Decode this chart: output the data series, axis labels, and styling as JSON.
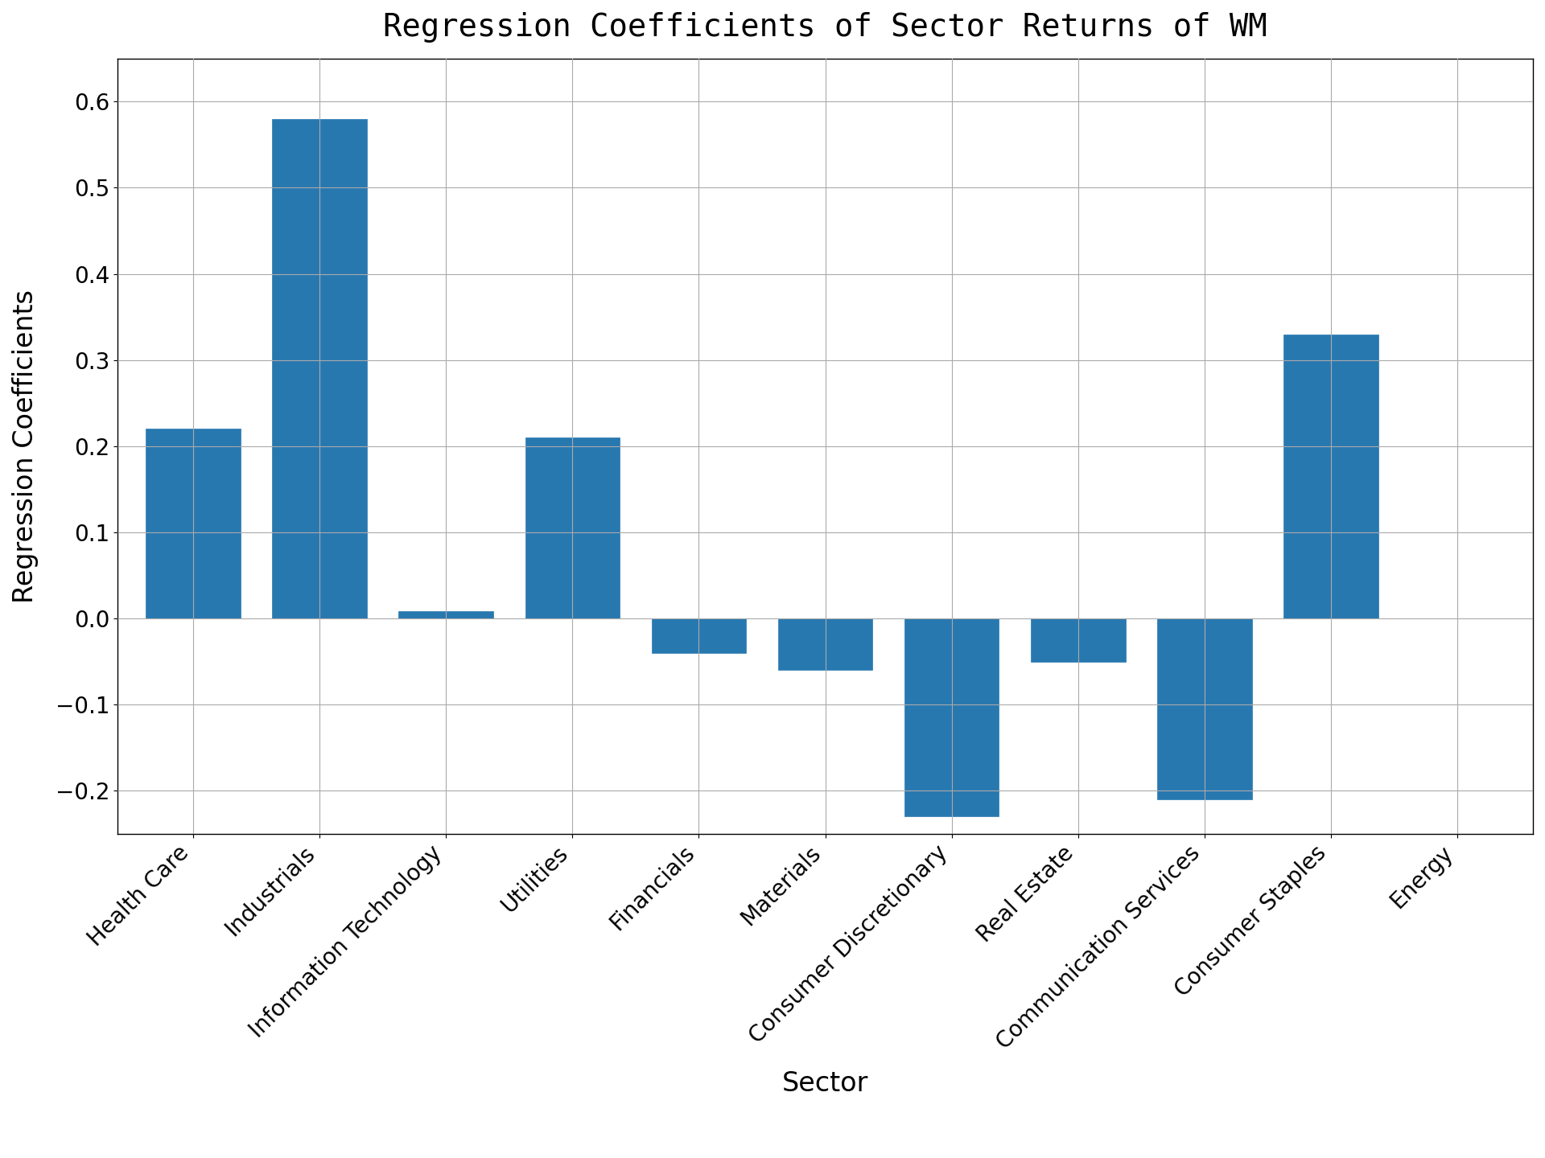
{
  "title": "Regression Coefficients of Sector Returns of WM",
  "xlabel": "Sector",
  "ylabel": "Regression Coefficients",
  "categories": [
    "Health Care",
    "Industrials",
    "Information Technology",
    "Utilities",
    "Financials",
    "Materials",
    "Consumer Discretionary",
    "Real Estate",
    "Communication Services",
    "Consumer Staples",
    "Energy"
  ],
  "values": [
    0.22,
    0.58,
    0.008,
    0.21,
    -0.04,
    -0.06,
    -0.23,
    -0.05,
    -0.21,
    0.33,
    0.0
  ],
  "bar_color": "#2878b0",
  "bar_edgecolor": "#2878b0",
  "ylim": [
    -0.25,
    0.65
  ],
  "yticks": [
    -0.2,
    -0.1,
    0.0,
    0.1,
    0.2,
    0.3,
    0.4,
    0.5,
    0.6
  ],
  "grid": true,
  "title_fontsize": 28,
  "label_fontsize": 24,
  "tick_fontsize": 20,
  "background_color": "#ffffff",
  "figsize": [
    19.2,
    14.4
  ],
  "dpi": 100,
  "bar_width": 0.75
}
